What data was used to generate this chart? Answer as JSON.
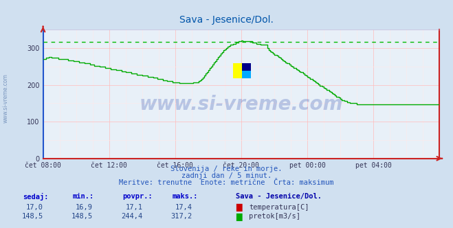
{
  "title": "Sava - Jesenice/Dol.",
  "title_color": "#0055aa",
  "bg_color": "#d0e0f0",
  "plot_bg_color": "#e8f0f8",
  "grid_color_major": "#ffbbbb",
  "grid_color_minor": "#ffe8e8",
  "x_labels": [
    "čet 08:00",
    "čet 12:00",
    "čet 16:00",
    "čet 20:00",
    "pet 00:00",
    "pet 04:00"
  ],
  "ymin": 0,
  "ymax": 350,
  "yticks": [
    0,
    100,
    200,
    300
  ],
  "max_line_value": 317.2,
  "max_line_color": "#00bb00",
  "line_color": "#00aa00",
  "subtitle1": "Slovenija / reke in morje.",
  "subtitle2": "zadnji dan / 5 minut.",
  "subtitle3": "Meritve: trenutne  Enote: metrične  Črta: maksimum",
  "subtitle_color": "#2255bb",
  "legend_title": "Sava - Jesenice/Dol.",
  "legend_title_color": "#0000aa",
  "table_headers": [
    "sedaj:",
    "min.:",
    "povpr.:",
    "maks.:"
  ],
  "table_header_color": "#0000cc",
  "row1_values": [
    "17,0",
    "16,9",
    "17,1",
    "17,4"
  ],
  "row2_values": [
    "148,5",
    "148,5",
    "244,4",
    "317,2"
  ],
  "row1_label": "temperatura[C]",
  "row2_label": "pretok[m3/s]",
  "row1_color": "#cc0000",
  "row2_color": "#00aa00",
  "watermark_text": "www.si-vreme.com",
  "left_label": "www.si-vreme.com",
  "spine_left_color": "#2255cc",
  "spine_bottom_color": "#cc2222",
  "spine_right_color": "#cc2222",
  "spine_top_color": "#bbbbdd"
}
